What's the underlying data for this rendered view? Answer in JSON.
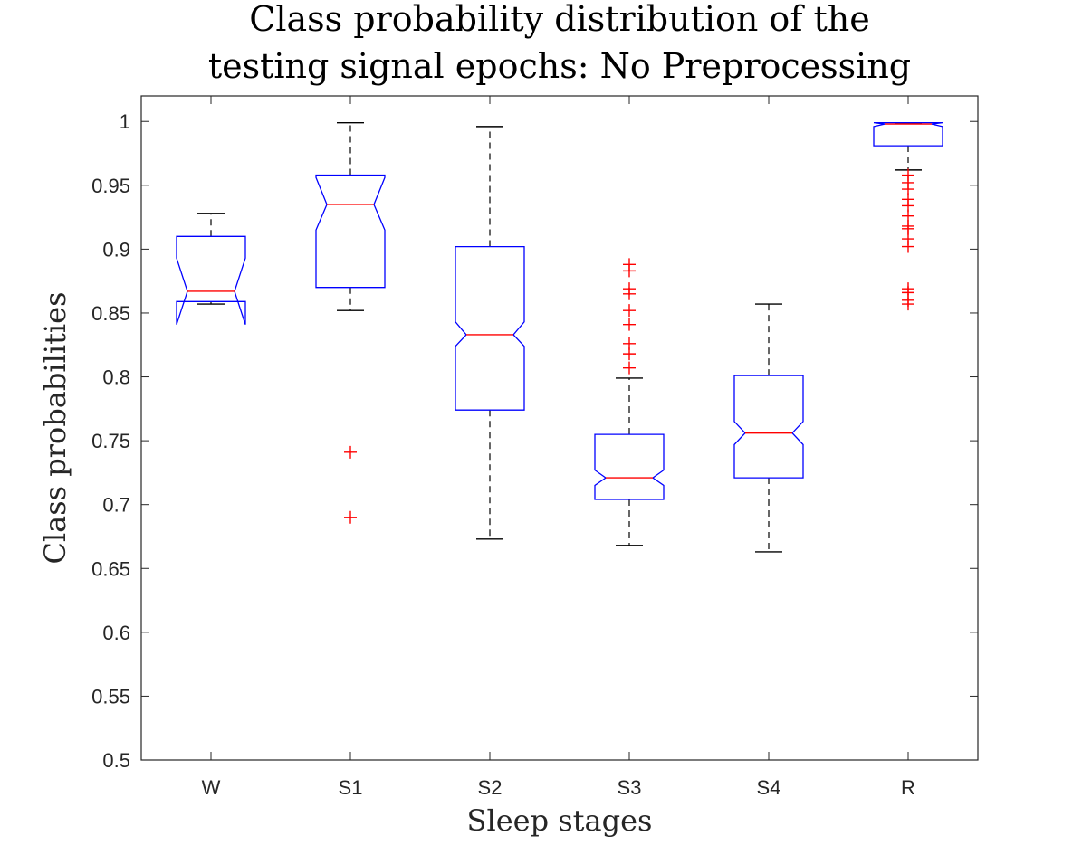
{
  "chart_data": {
    "type": "boxplot",
    "title": [
      "Class probability distribution of the",
      "testing signal epochs: No Preprocessing"
    ],
    "xlabel": "Sleep stages",
    "ylabel": "Class probabilities",
    "ylim": [
      0.5,
      1.02
    ],
    "yticks": [
      0.5,
      0.55,
      0.6,
      0.65,
      0.7,
      0.75,
      0.8,
      0.85,
      0.9,
      0.95,
      1
    ],
    "ytick_labels": [
      "0.5",
      "0.55",
      "0.6",
      "0.65",
      "0.7",
      "0.75",
      "0.8",
      "0.85",
      "0.9",
      "0.95",
      "1"
    ],
    "categories": [
      "W",
      "S1",
      "S2",
      "S3",
      "S4",
      "R"
    ],
    "notched": true,
    "grid": false,
    "box_color": "#0000ff",
    "median_color": "#ff0000",
    "whisker_color": "#000000",
    "outlier_color": "#ff0000",
    "boxes": [
      {
        "category": "W",
        "whisker_low": 0.857,
        "q1": 0.859,
        "notch_low": 0.841,
        "median": 0.867,
        "notch_high": 0.893,
        "q3": 0.91,
        "whisker_high": 0.928,
        "outliers": []
      },
      {
        "category": "S1",
        "whisker_low": 0.852,
        "q1": 0.87,
        "notch_low": 0.915,
        "median": 0.935,
        "notch_high": 0.956,
        "q3": 0.958,
        "whisker_high": 0.999,
        "outliers": [
          0.741,
          0.69
        ]
      },
      {
        "category": "S2",
        "whisker_low": 0.673,
        "q1": 0.774,
        "notch_low": 0.824,
        "median": 0.833,
        "notch_high": 0.843,
        "q3": 0.902,
        "whisker_high": 0.996,
        "outliers": []
      },
      {
        "category": "S3",
        "whisker_low": 0.668,
        "q1": 0.704,
        "notch_low": 0.715,
        "median": 0.721,
        "notch_high": 0.727,
        "q3": 0.755,
        "whisker_high": 0.799,
        "outliers": [
          0.888,
          0.883,
          0.869,
          0.865,
          0.852,
          0.841,
          0.826,
          0.818,
          0.807
        ]
      },
      {
        "category": "S4",
        "whisker_low": 0.663,
        "q1": 0.721,
        "notch_low": 0.747,
        "median": 0.756,
        "notch_high": 0.765,
        "q3": 0.801,
        "whisker_high": 0.857,
        "outliers": []
      },
      {
        "category": "R",
        "whisker_low": 0.962,
        "q1": 0.981,
        "notch_low": 0.996,
        "median": 0.998,
        "notch_high": 0.999,
        "q3": 0.999,
        "whisker_high": 0.999,
        "outliers": [
          0.958,
          0.952,
          0.947,
          0.939,
          0.934,
          0.926,
          0.918,
          0.916,
          0.908,
          0.902,
          0.869,
          0.866,
          0.86,
          0.857
        ]
      }
    ]
  }
}
